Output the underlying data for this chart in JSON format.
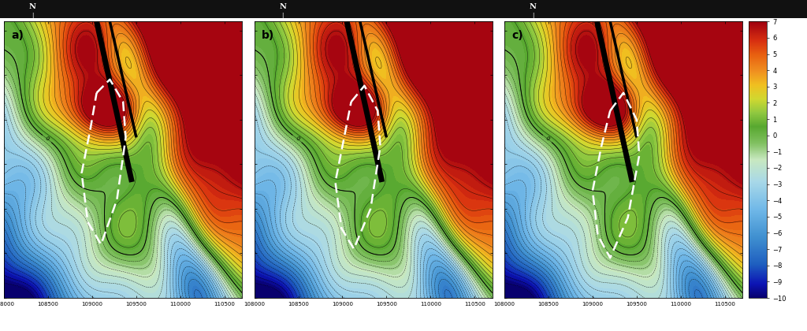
{
  "xlim": [
    108000,
    110700
  ],
  "ylim": [
    4121000,
    4124100
  ],
  "xticks": [
    108000,
    108500,
    109000,
    109500,
    110000,
    110500
  ],
  "yticks": [
    4121000,
    4121500,
    4122000,
    4122500,
    4123000,
    4123500,
    4124000
  ],
  "colorbar_ticks": [
    7,
    6,
    5,
    4,
    3,
    2,
    1,
    0,
    -1,
    -2,
    -3,
    -4,
    -5,
    -6,
    -7,
    -8,
    -9,
    -10
  ],
  "vmin": -10,
  "vmax": 7,
  "panel_labels": [
    "a)",
    "b)",
    "c)"
  ],
  "north_label": "N",
  "background_dark": "#111111",
  "colormap_nodes": [
    [
      0.0,
      "#08006E"
    ],
    [
      0.05,
      "#0C14B4"
    ],
    [
      0.12,
      "#1E5EBF"
    ],
    [
      0.22,
      "#4090D0"
    ],
    [
      0.32,
      "#70B8E8"
    ],
    [
      0.42,
      "#A8D8E8"
    ],
    [
      0.5,
      "#C8E8C0"
    ],
    [
      0.56,
      "#80C060"
    ],
    [
      0.62,
      "#58A830"
    ],
    [
      0.67,
      "#90C840"
    ],
    [
      0.72,
      "#D0D830"
    ],
    [
      0.77,
      "#F0C020"
    ],
    [
      0.82,
      "#F09020"
    ],
    [
      0.88,
      "#E86010"
    ],
    [
      0.93,
      "#D83010"
    ],
    [
      1.0,
      "#A00010"
    ]
  ]
}
